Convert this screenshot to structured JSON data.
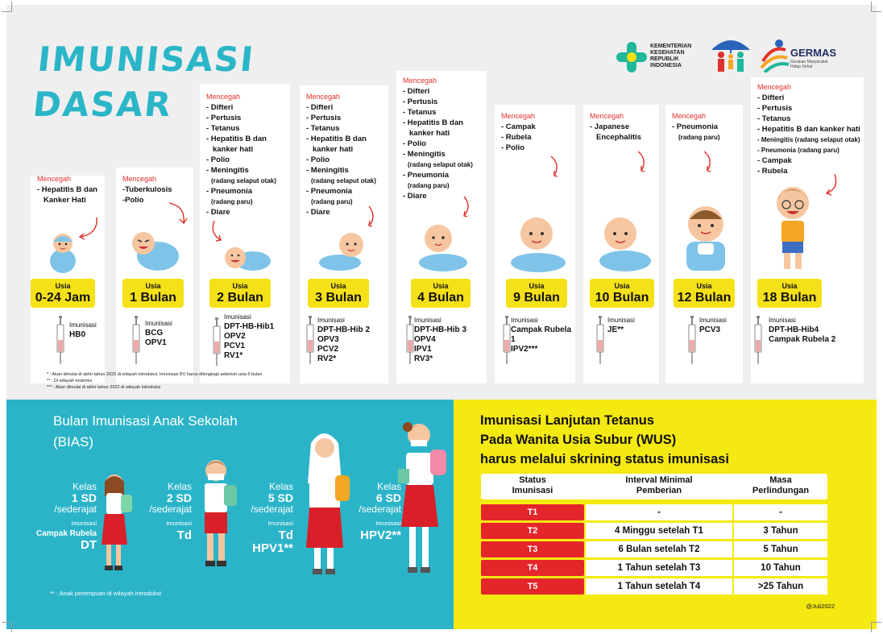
{
  "title": {
    "line1": "IMUNISASI",
    "line2": "DASAR"
  },
  "logos": {
    "kemenkes": "KEMENTERIAN\nKESEHATAN\nREPUBLIK\nINDONESIA",
    "germas": "GERMAS",
    "germas_sub": "Gerakan Masyarakat\nHidup Sehat"
  },
  "prevent_label": "Mencegah",
  "imm_label": "Imunisasi",
  "age_label": "Usia",
  "columns": [
    {
      "age": "0-24 Jam",
      "prevents": [
        "- Hepatitis B dan",
        "Kanker Hati"
      ],
      "vaccines": [
        "HB0"
      ]
    },
    {
      "age": "1 Bulan",
      "prevents": [
        "-Tuberkulosis",
        "-Polio"
      ],
      "vaccines": [
        "BCG",
        "OPV1"
      ]
    },
    {
      "age": "2 Bulan",
      "prevents": [
        "- Difteri",
        "- Pertusis",
        "- Tetanus",
        "- Hepatitis B dan",
        "kanker hati",
        "- Polio",
        "- Meningitis",
        "(radang selaput otak)",
        "- Pneumonia",
        "(radang paru)",
        "- Diare"
      ],
      "vaccines": [
        "DPT-HB-Hib1",
        "OPV2",
        "PCV1",
        "RV1*"
      ]
    },
    {
      "age": "3 Bulan",
      "prevents": [
        "- Difteri",
        "- Pertusis",
        "- Tetanus",
        "- Hepatitis B dan",
        "kanker hati",
        "- Polio",
        "- Meningitis",
        "(radang selaput otak)",
        "- Pneumonia",
        "(radang paru)",
        "- Diare"
      ],
      "vaccines": [
        "DPT-HB-Hib 2",
        "OPV3",
        "PCV2",
        "RV2*"
      ]
    },
    {
      "age": "4 Bulan",
      "prevents": [
        "- Difteri",
        "- Pertusis",
        "- Tetanus",
        "- Hepatitis B dan",
        "kanker hati",
        "- Polio",
        "- Meningitis",
        "(radang selaput otak)",
        "- Pneumonia",
        "(radang paru)",
        "- Diare"
      ],
      "vaccines": [
        "DPT-HB-Hib 3",
        "OPV4",
        "IPV1",
        "RV3*"
      ]
    },
    {
      "age": "9 Bulan",
      "prevents": [
        "- Campak",
        "- Rubela",
        "- Polio"
      ],
      "vaccines": [
        "Campak Rubela 1",
        "IPV2***"
      ]
    },
    {
      "age": "10 Bulan",
      "prevents": [
        "- Japanese",
        "Encephalitis"
      ],
      "vaccines": [
        "JE**"
      ]
    },
    {
      "age": "12 Bulan",
      "prevents": [
        "- Pneumonia",
        "(radang paru)"
      ],
      "vaccines": [
        "PCV3"
      ]
    },
    {
      "age": "18 Bulan",
      "prevents": [
        "- Difteri",
        "- Pertusis",
        "- Tetanus",
        "- Hepatitis B dan kanker hati",
        "- Meningitis (radang selaput otak)",
        "- Pneumonia (radang paru)",
        "- Campak",
        "- Rubela"
      ],
      "vaccines": [
        "DPT-HB-Hib4",
        "Campak Rubela 2"
      ]
    }
  ],
  "footnotes": [
    "*   : Akan dimulai di akhir tahun 2022 di wilayah introduksi, Imunisasi RV harus dilengkapi sebelum usia 6 bulan",
    "**  : Di wilayah endemis",
    "*** : Akan dimulai di akhir tahun 2022 di wilayah introduksi"
  ],
  "bias": {
    "title_line1": "Bulan Imunisasi Anak Sekolah",
    "title_line2": "(BIAS)",
    "kelas_label": "Kelas",
    "sederajat": "/sederajat",
    "imm_label": "Imunisasi",
    "grades": [
      {
        "grade": "1 SD",
        "vax1": "Campak Rubela",
        "vax2": "DT"
      },
      {
        "grade": "2 SD",
        "vax1": "",
        "vax2": "Td"
      },
      {
        "grade": "5 SD",
        "vax1": "",
        "vax2": "Td",
        "vax3": "HPV1**"
      },
      {
        "grade": "6 SD",
        "vax1": "",
        "vax2": "HPV2**"
      }
    ],
    "note": "** : Anak perempuan di wilayah introduksi"
  },
  "wus": {
    "title_line1": "Imunisasi Lanjutan Tetanus",
    "title_line2": "Pada Wanita Usia Subur (WUS)",
    "title_line3": "harus melalui skrining status imunisasi",
    "headers": {
      "status": "Status\nImunisasi",
      "interval": "Interval Minimal\nPemberian",
      "masa": "Masa\nPerlindungan"
    },
    "rows": [
      {
        "status": "T1",
        "interval": "-",
        "masa": "-"
      },
      {
        "status": "T2",
        "interval": "4 Minggu setelah T1",
        "masa": "3 Tahun"
      },
      {
        "status": "T3",
        "interval": "6 Bulan setelah T2",
        "masa": "5 Tahun"
      },
      {
        "status": "T4",
        "interval": "1 Tahun setelah T3",
        "masa": "10 Tahun"
      },
      {
        "status": "T5",
        "interval": "1 Tahun setelah T4",
        "masa": ">25 Tahun"
      }
    ],
    "credit": "@Juli2022"
  },
  "colors": {
    "teal": "#2bb6c8",
    "yellow": "#f5e118",
    "red": "#e0312b",
    "baby_blue": "#7fc4e8",
    "skin": "#f6c6a0"
  }
}
